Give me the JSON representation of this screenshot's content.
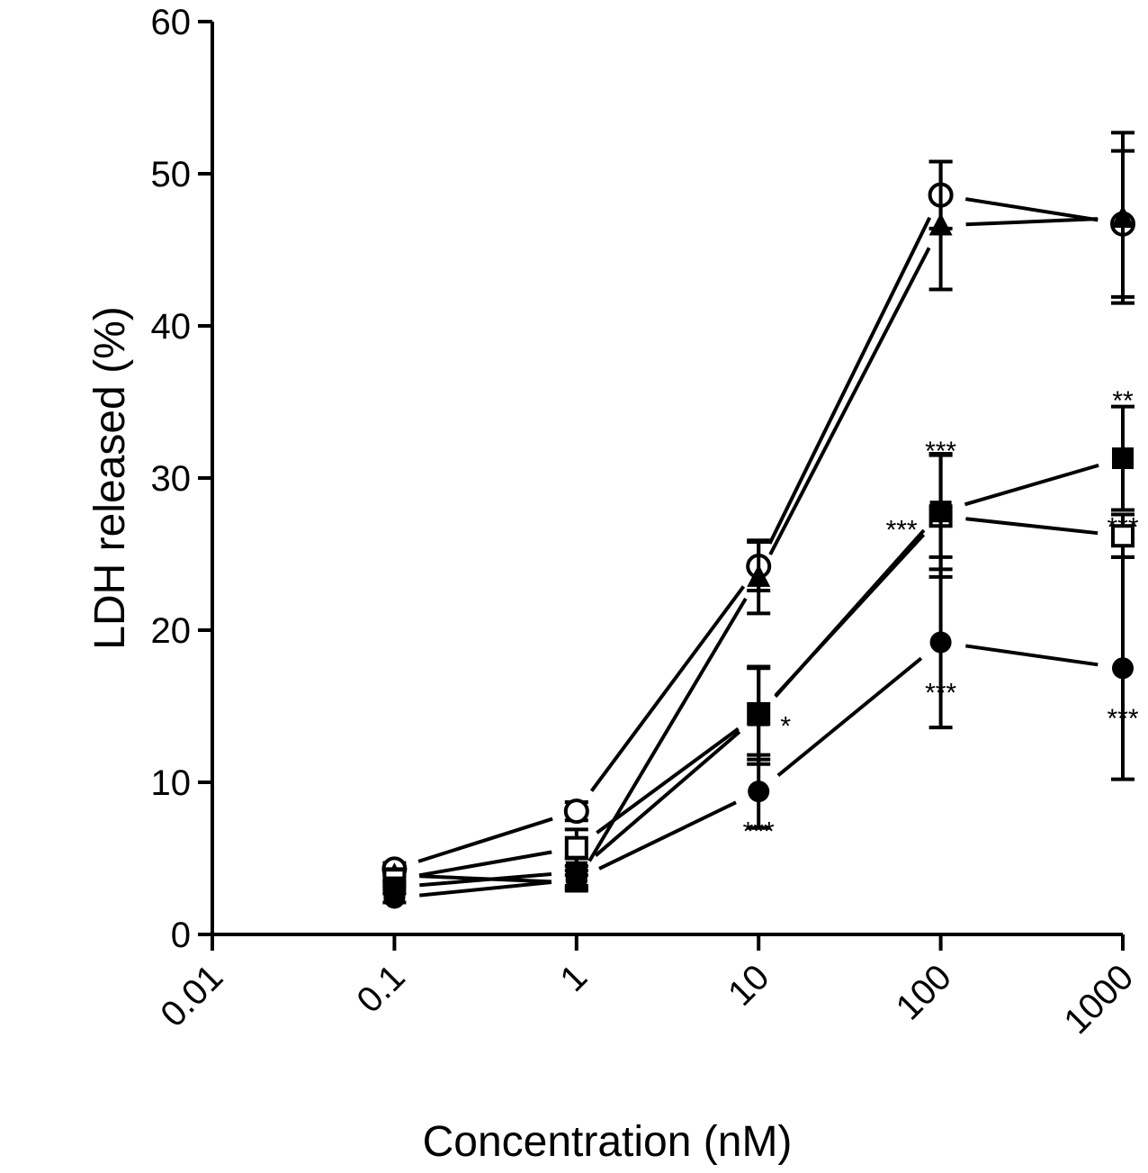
{
  "chart_data": {
    "type": "line",
    "title": "",
    "xlabel": "Concentration (nM)",
    "ylabel": "LDH released (%)",
    "xscale": "log",
    "xlim": [
      0.01,
      1000
    ],
    "ylim": [
      0,
      60
    ],
    "grid": false,
    "x_ticks": [
      0.01,
      0.1,
      1,
      10,
      100,
      1000
    ],
    "x_tick_labels": [
      "0.01",
      "0.1",
      "1",
      "10",
      "100",
      "1000"
    ],
    "y_ticks": [
      0,
      10,
      20,
      30,
      40,
      50,
      60
    ],
    "y_tick_labels": [
      "0",
      "10",
      "20",
      "30",
      "40",
      "50",
      "60"
    ],
    "x": [
      0.1,
      1,
      10,
      100,
      1000
    ],
    "series": [
      {
        "name": "open-circle",
        "marker": "circle-open",
        "values": [
          4.3,
          8.1,
          24.2,
          48.6,
          46.7
        ],
        "err": [
          0.4,
          0.6,
          1.6,
          2.2,
          4.8
        ]
      },
      {
        "name": "filled-triangle",
        "marker": "triangle-filled",
        "values": [
          3.9,
          3.4,
          23.5,
          46.6,
          47.1
        ],
        "err": [
          0.4,
          0.5,
          2.4,
          4.2,
          5.6
        ]
      },
      {
        "name": "open-square",
        "marker": "square-open",
        "values": [
          3.6,
          5.7,
          14.5,
          27.5,
          26.2
        ],
        "err": [
          0.4,
          1.2,
          3.0,
          4.0,
          1.4
        ]
      },
      {
        "name": "filled-square",
        "marker": "square-filled",
        "values": [
          3.1,
          4.1,
          14.4,
          27.8,
          31.3
        ],
        "err": [
          0.4,
          0.9,
          3.2,
          3.8,
          3.4
        ]
      },
      {
        "name": "filled-circle",
        "marker": "circle-filled",
        "values": [
          2.4,
          3.6,
          9.4,
          19.2,
          17.5
        ],
        "err": [
          0.3,
          0.6,
          2.4,
          5.6,
          7.3
        ]
      }
    ],
    "annotations": [
      {
        "text": "***",
        "x": 10,
        "y": 7.5,
        "series": "filled-circle"
      },
      {
        "text": "*",
        "x": 10,
        "y": 14.4,
        "series": "filled-square"
      },
      {
        "text": "***",
        "x": 100,
        "y": 32.5,
        "series": "filled-square"
      },
      {
        "text": "***",
        "x": 100,
        "y": 27.3,
        "series": "open-square"
      },
      {
        "text": "***",
        "x": 100,
        "y": 16.6,
        "series": "filled-circle"
      },
      {
        "text": "**",
        "x": 1000,
        "y": 35.8,
        "series": "filled-square"
      },
      {
        "text": "***",
        "x": 1000,
        "y": 27.5,
        "series": "open-square"
      },
      {
        "text": "***",
        "x": 1000,
        "y": 14.9,
        "series": "filled-circle"
      }
    ]
  }
}
